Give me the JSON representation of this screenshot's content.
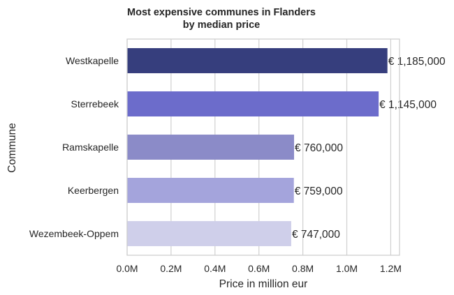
{
  "chart_data": {
    "type": "bar",
    "orientation": "horizontal",
    "title_line1": "Most expensive communes in Flanders",
    "title_line2": "by median price",
    "xlabel": "Price in million eur",
    "ylabel": "Commune",
    "categories": [
      "Westkapelle",
      "Sterrebeek",
      "Ramskapelle",
      "Keerbergen",
      "Wezembeek-Oppem"
    ],
    "values": [
      1185000,
      1145000,
      760000,
      759000,
      747000
    ],
    "data_labels": [
      "€ 1,185,000",
      "€ 1,145,000",
      "€ 760,000",
      "€ 759,000",
      "€ 747,000"
    ],
    "colors": [
      "#363e7d",
      "#6c6ccb",
      "#8b8bc8",
      "#a4a4dc",
      "#cfcfea"
    ],
    "xlim": [
      0,
      1240000
    ],
    "x_ticks": [
      0,
      200000,
      400000,
      600000,
      800000,
      1000000,
      1200000
    ],
    "x_tick_labels": [
      "0.0M",
      "0.2M",
      "0.4M",
      "0.6M",
      "0.8M",
      "1.0M",
      "1.2M"
    ],
    "grid": "vertical",
    "legend": "none"
  }
}
